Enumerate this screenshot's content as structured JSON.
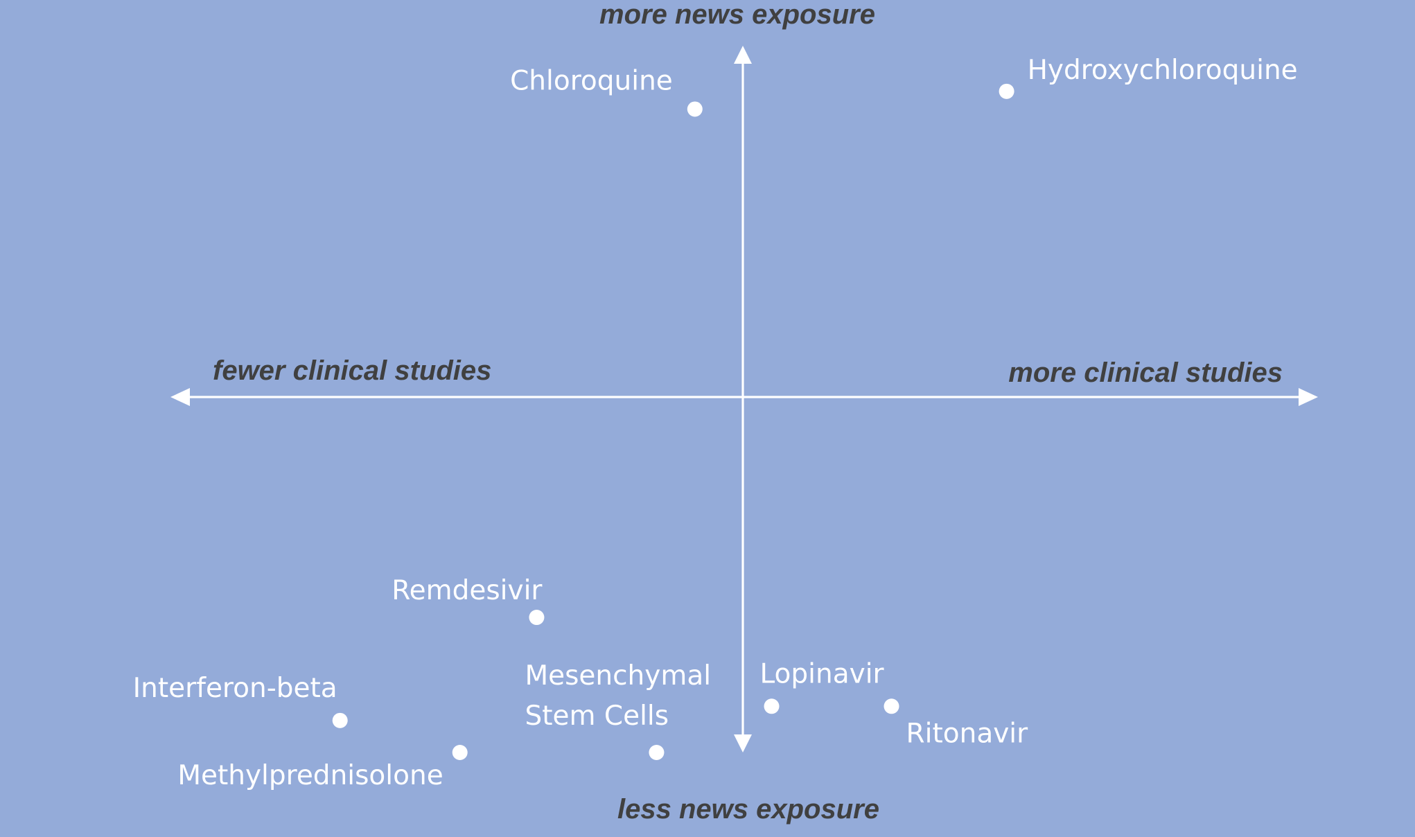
{
  "chart_data": {
    "type": "scatter",
    "title": "",
    "xlim": [
      -1,
      1
    ],
    "ylim": [
      -1,
      1
    ],
    "grid": false,
    "legend": "none",
    "colors": {
      "background": "#94abd9",
      "axes": "#ffffff",
      "points": "#ffffff",
      "point_labels": "#ffffff",
      "axis_labels": "#404040"
    },
    "axis_labels": {
      "x_negative": "fewer clinical studies",
      "x_positive": "more clinical studies",
      "y_positive": "more news exposure",
      "y_negative": "less news exposure"
    },
    "points": [
      {
        "name": "Chloroquine",
        "x": -0.1,
        "y": 0.81
      },
      {
        "name": "Hydroxychloroquine",
        "x": 0.55,
        "y": 0.86
      },
      {
        "name": "Remdesivir",
        "x": -0.43,
        "y": -0.62
      },
      {
        "name": "Interferon-beta",
        "x": -0.84,
        "y": -0.91
      },
      {
        "name": "Methylprednisolone",
        "x": -0.59,
        "y": -1.0
      },
      {
        "name": "Mesenchymal Stem Cells",
        "x": -0.18,
        "y": -1.0
      },
      {
        "name": "Lopinavir",
        "x": 0.06,
        "y": -0.87
      },
      {
        "name": "Ritonavir",
        "x": 0.31,
        "y": -0.87
      }
    ]
  }
}
